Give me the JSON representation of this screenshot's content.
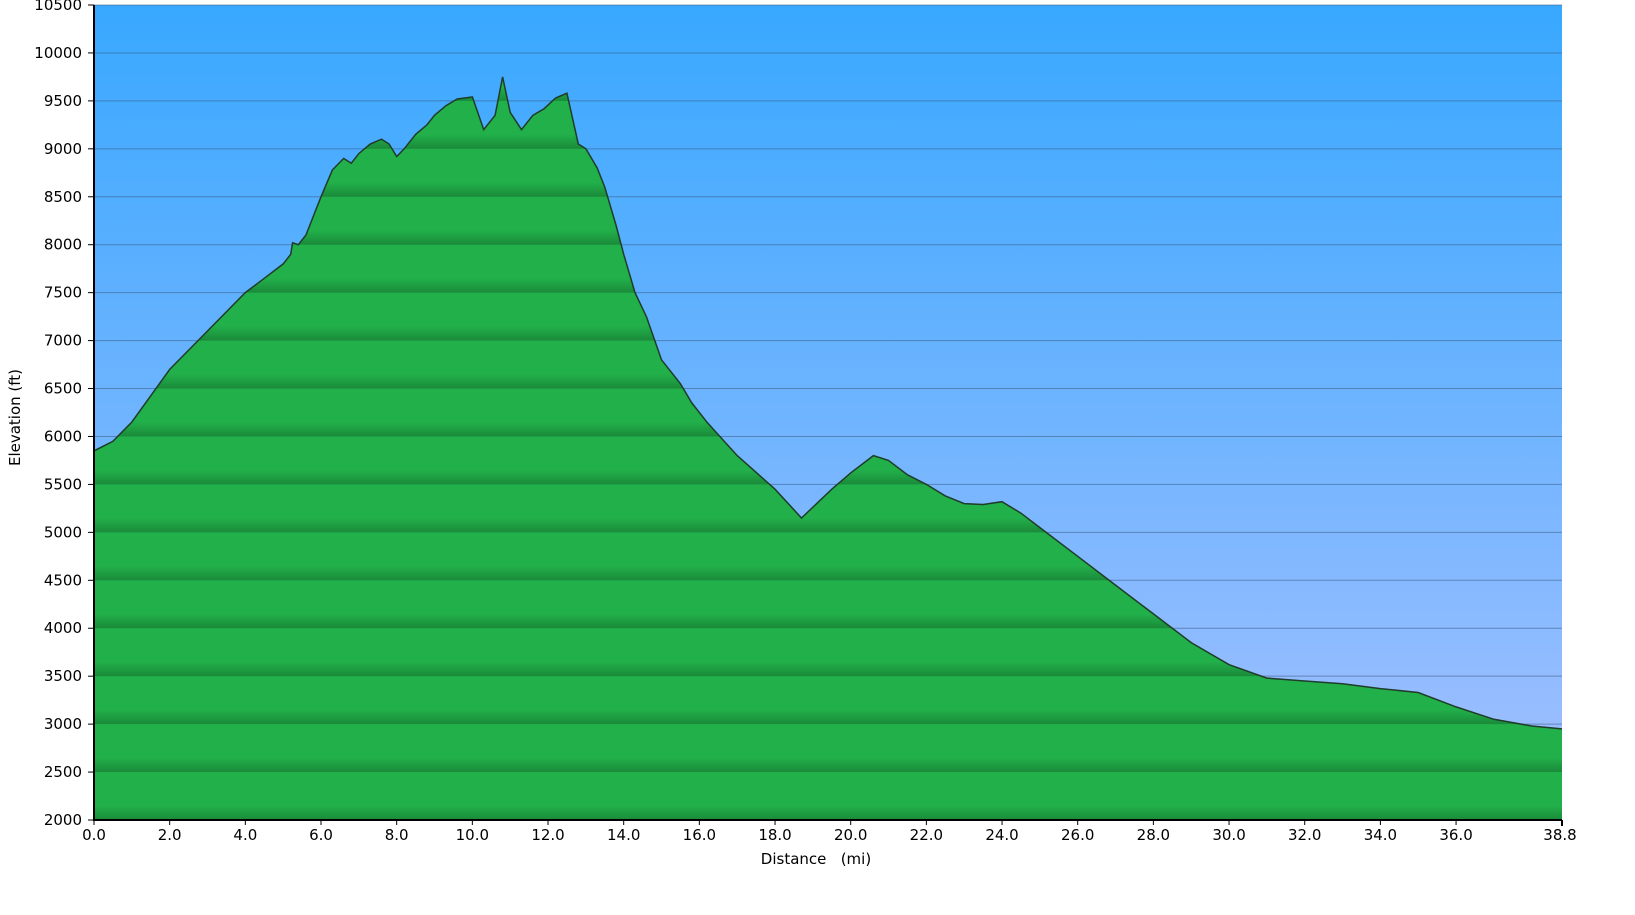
{
  "chart_data": {
    "type": "area",
    "title": "",
    "xlabel": "Distance   (mi)",
    "ylabel": "Elevation (ft)",
    "xlim": [
      0,
      38.8
    ],
    "ylim": [
      2000,
      10500
    ],
    "x_ticks": [
      0,
      2,
      4,
      6,
      8,
      10,
      12,
      14,
      16,
      18,
      20,
      22,
      24,
      26,
      28,
      30,
      32,
      34,
      36,
      38.8
    ],
    "x_tick_labels": [
      "0.0",
      "2.0",
      "4.0",
      "6.0",
      "8.0",
      "10.0",
      "12.0",
      "14.0",
      "16.0",
      "18.0",
      "20.0",
      "22.0",
      "24.0",
      "26.0",
      "28.0",
      "30.0",
      "32.0",
      "34.0",
      "36.0",
      "38.8"
    ],
    "y_ticks": [
      2000,
      2500,
      3000,
      3500,
      4000,
      4500,
      5000,
      5500,
      6000,
      6500,
      7000,
      7500,
      8000,
      8500,
      9000,
      9500,
      10000,
      10500
    ],
    "y_tick_labels": [
      "2000",
      "2500",
      "3000",
      "3500",
      "4000",
      "4500",
      "5000",
      "5500",
      "6000",
      "6500",
      "7000",
      "7500",
      "8000",
      "8500",
      "9000",
      "9500",
      "10000",
      "10500"
    ],
    "grid": true,
    "legend": "none",
    "colors": {
      "sky_top": "#38a8ff",
      "sky_bottom": "#a5c0ff",
      "fill_light": "#22b04a",
      "fill_dark": "#1a8a3a",
      "profile_line": "#1f3d28",
      "gridline": "#3a5a80"
    },
    "series": [
      {
        "x": [
          0.0,
          0.5,
          1.0,
          2.0,
          3.0,
          4.0,
          4.5,
          5.0,
          5.2,
          5.25,
          5.4,
          5.6,
          6.0,
          6.3,
          6.6,
          6.8,
          7.0,
          7.3,
          7.6,
          7.8,
          8.0,
          8.2,
          8.5,
          8.8,
          9.0,
          9.3,
          9.6,
          10.0,
          10.3,
          10.6,
          10.8,
          11.0,
          11.3,
          11.6,
          11.9,
          12.2,
          12.5,
          12.8,
          13.0,
          13.3,
          13.5,
          13.8,
          14.0,
          14.3,
          14.6,
          15.0,
          15.5,
          15.8,
          16.2,
          17.0,
          18.0,
          18.7,
          19.5,
          20.0,
          20.6,
          21.0,
          21.5,
          22.0,
          22.5,
          23.0,
          23.5,
          24.0,
          24.5,
          25.0,
          26.0,
          27.0,
          28.0,
          29.0,
          30.0,
          31.0,
          32.0,
          33.0,
          34.0,
          35.0,
          36.0,
          37.0,
          38.0,
          38.8
        ],
        "y": [
          5850,
          5950,
          6150,
          6700,
          7100,
          7500,
          7650,
          7800,
          7900,
          8020,
          8000,
          8100,
          8500,
          8780,
          8900,
          8850,
          8950,
          9050,
          9100,
          9050,
          8920,
          9000,
          9150,
          9250,
          9350,
          9450,
          9520,
          9540,
          9200,
          9350,
          9750,
          9380,
          9200,
          9350,
          9420,
          9530,
          9580,
          9050,
          9000,
          8800,
          8600,
          8200,
          7900,
          7500,
          7250,
          6800,
          6550,
          6350,
          6150,
          5800,
          5450,
          5150,
          5450,
          5620,
          5800,
          5750,
          5600,
          5500,
          5380,
          5300,
          5290,
          5320,
          5200,
          5050,
          4750,
          4450,
          4150,
          3850,
          3620,
          3480,
          3450,
          3420,
          3370,
          3330,
          3180,
          3050,
          2980,
          2950
        ]
      }
    ]
  }
}
